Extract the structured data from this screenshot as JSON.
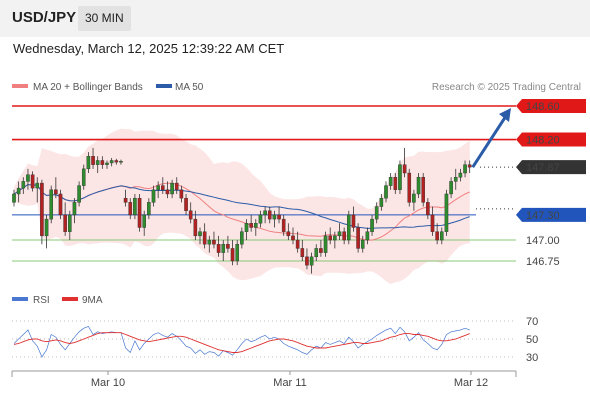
{
  "header": {
    "symbol": "USD/JPY",
    "timeframe": "30 MIN",
    "datetime": "Wednesday, March 12, 2025 12:39:22 AM CET"
  },
  "legend": {
    "ma20_label": "MA 20 + Bollinger Bands",
    "ma50_label": "MA 50",
    "ma20_color": "#f08080",
    "ma50_color": "#2b5ca8",
    "copyright": "Research © 2025 Trading Central"
  },
  "rsi_legend": {
    "rsi_label": "RSI",
    "ma_label": "9MA",
    "rsi_color": "#4a78d0",
    "ma_color": "#e03030"
  },
  "levels": [
    {
      "price": 148.6,
      "label": "148.60",
      "color": "#e01818",
      "style": "resistance"
    },
    {
      "price": 148.2,
      "label": "148.20",
      "color": "#e01818",
      "style": "resistance"
    },
    {
      "price": 147.87,
      "label": "147.87",
      "color": "#333333",
      "style": "current"
    },
    {
      "price": 147.3,
      "label": "147.30",
      "color": "#2255bb",
      "style": "pivot"
    },
    {
      "price": 147.0,
      "label": "147.00",
      "color": "#88c878",
      "style": "support"
    },
    {
      "price": 146.75,
      "label": "146.75",
      "color": "#88c878",
      "style": "support"
    }
  ],
  "chart_data": {
    "type": "candlestick",
    "x_ticks": [
      "Mar 10",
      "Mar 11",
      "Mar 12"
    ],
    "rsi_ticks": [
      70,
      50,
      30
    ],
    "ylim": [
      146.6,
      148.75
    ],
    "candles": [
      [
        147.45,
        147.6,
        147.4,
        147.55
      ],
      [
        147.55,
        147.7,
        147.45,
        147.62
      ],
      [
        147.62,
        147.75,
        147.55,
        147.7
      ],
      [
        147.7,
        147.85,
        147.6,
        147.78
      ],
      [
        147.78,
        147.82,
        147.58,
        147.62
      ],
      [
        147.62,
        147.75,
        147.45,
        147.68
      ],
      [
        147.68,
        147.72,
        146.95,
        147.05
      ],
      [
        147.05,
        147.3,
        146.9,
        147.25
      ],
      [
        147.25,
        147.65,
        147.2,
        147.6
      ],
      [
        147.6,
        147.75,
        147.5,
        147.55
      ],
      [
        147.55,
        147.6,
        147.25,
        147.3
      ],
      [
        147.3,
        147.45,
        147.05,
        147.1
      ],
      [
        147.1,
        147.35,
        147.0,
        147.3
      ],
      [
        147.3,
        147.5,
        147.2,
        147.45
      ],
      [
        147.45,
        147.7,
        147.4,
        147.65
      ],
      [
        147.65,
        147.9,
        147.6,
        147.85
      ],
      [
        147.85,
        148.05,
        147.8,
        148.0
      ],
      [
        148.0,
        148.1,
        147.85,
        147.9
      ],
      [
        147.9,
        148.0,
        147.8,
        147.95
      ],
      [
        147.95,
        148.0,
        147.85,
        147.9
      ],
      [
        147.9,
        147.95,
        147.85,
        147.92
      ],
      [
        147.92,
        147.98,
        147.88,
        147.95
      ],
      [
        147.95,
        147.97,
        147.9,
        147.93
      ],
      [
        147.93,
        147.96,
        147.9,
        147.94
      ],
      [
        147.5,
        147.6,
        147.4,
        147.45
      ],
      [
        147.45,
        147.5,
        147.25,
        147.3
      ],
      [
        147.3,
        147.55,
        147.25,
        147.5
      ],
      [
        147.5,
        147.55,
        147.1,
        147.15
      ],
      [
        147.15,
        147.35,
        147.05,
        147.3
      ],
      [
        147.3,
        147.5,
        147.25,
        147.45
      ],
      [
        147.45,
        147.65,
        147.4,
        147.6
      ],
      [
        147.6,
        147.7,
        147.5,
        147.65
      ],
      [
        147.65,
        147.75,
        147.55,
        147.6
      ],
      [
        147.6,
        147.7,
        147.5,
        147.55
      ],
      [
        147.55,
        147.72,
        147.5,
        147.68
      ],
      [
        147.68,
        147.75,
        147.55,
        147.6
      ],
      [
        147.6,
        147.65,
        147.45,
        147.5
      ],
      [
        147.5,
        147.55,
        147.3,
        147.35
      ],
      [
        147.35,
        147.45,
        147.2,
        147.25
      ],
      [
        147.25,
        147.35,
        147.0,
        147.05
      ],
      [
        147.05,
        147.15,
        146.95,
        147.1
      ],
      [
        147.1,
        147.2,
        146.9,
        146.95
      ],
      [
        146.95,
        147.05,
        146.85,
        147.0
      ],
      [
        147.0,
        147.1,
        146.9,
        146.95
      ],
      [
        146.95,
        147.05,
        146.8,
        146.85
      ],
      [
        146.85,
        147.0,
        146.75,
        146.95
      ],
      [
        146.95,
        147.05,
        146.85,
        146.9
      ],
      [
        146.9,
        147.0,
        146.7,
        146.75
      ],
      [
        146.75,
        147.0,
        146.7,
        146.95
      ],
      [
        146.95,
        147.15,
        146.9,
        147.1
      ],
      [
        147.1,
        147.25,
        147.0,
        147.2
      ],
      [
        147.2,
        147.3,
        147.1,
        147.15
      ],
      [
        147.15,
        147.25,
        147.05,
        147.2
      ],
      [
        147.2,
        147.35,
        147.15,
        147.3
      ],
      [
        147.3,
        147.4,
        147.2,
        147.35
      ],
      [
        147.35,
        147.4,
        147.2,
        147.25
      ],
      [
        147.25,
        147.35,
        147.15,
        147.3
      ],
      [
        147.3,
        147.4,
        147.2,
        147.25
      ],
      [
        147.25,
        147.3,
        147.05,
        147.1
      ],
      [
        147.1,
        147.2,
        147.0,
        147.05
      ],
      [
        147.05,
        147.15,
        146.95,
        147.0
      ],
      [
        147.0,
        147.1,
        146.85,
        146.9
      ],
      [
        146.9,
        147.0,
        146.75,
        146.8
      ],
      [
        146.8,
        146.9,
        146.65,
        146.7
      ],
      [
        146.7,
        146.85,
        146.6,
        146.8
      ],
      [
        146.8,
        146.95,
        146.75,
        146.9
      ],
      [
        146.9,
        147.0,
        146.8,
        146.85
      ],
      [
        146.85,
        147.1,
        146.8,
        147.05
      ],
      [
        147.05,
        147.15,
        146.95,
        147.0
      ],
      [
        147.0,
        147.1,
        146.9,
        147.05
      ],
      [
        147.05,
        147.2,
        147.0,
        147.1
      ],
      [
        147.1,
        147.15,
        146.95,
        147.0
      ],
      [
        147.0,
        147.35,
        146.95,
        147.3
      ],
      [
        147.3,
        147.4,
        147.1,
        147.15
      ],
      [
        147.15,
        147.2,
        146.85,
        146.9
      ],
      [
        146.9,
        147.05,
        146.85,
        147.0
      ],
      [
        147.0,
        147.15,
        146.95,
        147.1
      ],
      [
        147.1,
        147.3,
        147.05,
        147.25
      ],
      [
        147.25,
        147.45,
        147.2,
        147.4
      ],
      [
        147.4,
        147.55,
        147.35,
        147.5
      ],
      [
        147.5,
        147.7,
        147.45,
        147.65
      ],
      [
        147.65,
        147.8,
        147.6,
        147.75
      ],
      [
        147.75,
        147.8,
        147.55,
        147.6
      ],
      [
        147.6,
        147.95,
        147.55,
        147.9
      ],
      [
        147.9,
        148.1,
        147.75,
        147.8
      ],
      [
        147.8,
        147.85,
        147.4,
        147.45
      ],
      [
        147.45,
        147.6,
        147.35,
        147.55
      ],
      [
        147.55,
        147.8,
        147.5,
        147.75
      ],
      [
        147.75,
        147.8,
        147.4,
        147.45
      ],
      [
        147.45,
        147.5,
        147.25,
        147.3
      ],
      [
        147.3,
        147.4,
        147.05,
        147.1
      ],
      [
        147.1,
        147.2,
        146.95,
        147.0
      ],
      [
        147.0,
        147.15,
        146.95,
        147.1
      ],
      [
        147.1,
        147.6,
        147.05,
        147.55
      ],
      [
        147.55,
        147.75,
        147.5,
        147.7
      ],
      [
        147.7,
        147.85,
        147.6,
        147.75
      ],
      [
        147.75,
        147.85,
        147.7,
        147.8
      ],
      [
        147.8,
        147.95,
        147.75,
        147.9
      ],
      [
        147.9,
        147.95,
        147.8,
        147.87
      ]
    ],
    "rsi": [
      45,
      50,
      55,
      60,
      48,
      42,
      30,
      38,
      55,
      52,
      44,
      38,
      45,
      52,
      58,
      62,
      64,
      55,
      58,
      56,
      57,
      58,
      57,
      57,
      40,
      35,
      48,
      38,
      45,
      50,
      55,
      57,
      54,
      52,
      56,
      53,
      48,
      42,
      40,
      34,
      38,
      33,
      36,
      35,
      31,
      37,
      35,
      32,
      38,
      45,
      50,
      47,
      49,
      52,
      54,
      50,
      52,
      50,
      45,
      42,
      40,
      38,
      35,
      33,
      38,
      42,
      40,
      46,
      44,
      46,
      48,
      45,
      52,
      47,
      40,
      44,
      47,
      50,
      54,
      57,
      60,
      62,
      56,
      63,
      58,
      48,
      52,
      57,
      49,
      45,
      40,
      38,
      44,
      55,
      58,
      59,
      60,
      62,
      60
    ],
    "rsi_ma": [
      44,
      45,
      47,
      49,
      50,
      50,
      48,
      47,
      48,
      49,
      48,
      46,
      45,
      46,
      48,
      50,
      52,
      54,
      56,
      57,
      57,
      57,
      57,
      57,
      55,
      53,
      51,
      49,
      48,
      47,
      48,
      49,
      50,
      51,
      52,
      53,
      53,
      52,
      50,
      48,
      46,
      44,
      42,
      40,
      38,
      37,
      36,
      35,
      35,
      36,
      38,
      40,
      42,
      44,
      46,
      48,
      49,
      50,
      50,
      49,
      48,
      46,
      44,
      42,
      41,
      40,
      40,
      40,
      41,
      42,
      43,
      44,
      45,
      46,
      46,
      45,
      45,
      46,
      47,
      48,
      50,
      52,
      53,
      55,
      56,
      56,
      55,
      55,
      54,
      53,
      51,
      49,
      48,
      48,
      49,
      50,
      52,
      54,
      56
    ]
  }
}
